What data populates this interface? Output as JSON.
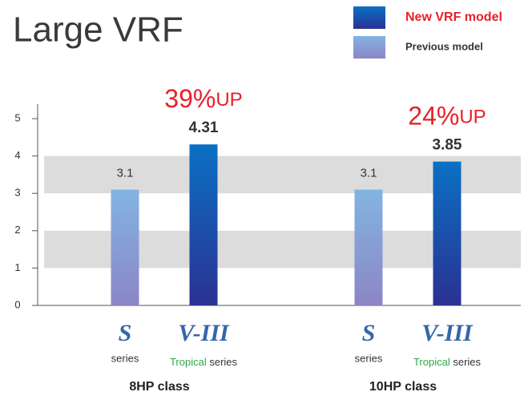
{
  "chart_data": {
    "type": "bar",
    "title": "Large VRF",
    "categories": [
      "8HP class",
      "10HP class"
    ],
    "series": [
      {
        "name": "Previous model",
        "colors": [
          "#82b4e2",
          "#8c86c6"
        ],
        "values": [
          3.1,
          3.1
        ]
      },
      {
        "name": "New VRF model",
        "colors": [
          "#0a70c4",
          "#2b3192"
        ],
        "values": [
          4.31,
          3.85
        ]
      }
    ],
    "annotations": [
      {
        "number": "39%",
        "suffix": "UP"
      },
      {
        "number": "24%",
        "suffix": "UP"
      }
    ],
    "bar_labels": [
      {
        "logo": "S",
        "text": "series"
      },
      {
        "logo": "V-III",
        "highlight": "Tropical",
        "text": "series"
      }
    ],
    "ylim": [
      0,
      5
    ],
    "yticks": [
      0,
      1,
      2,
      3,
      4,
      5
    ],
    "grid": "bands"
  }
}
